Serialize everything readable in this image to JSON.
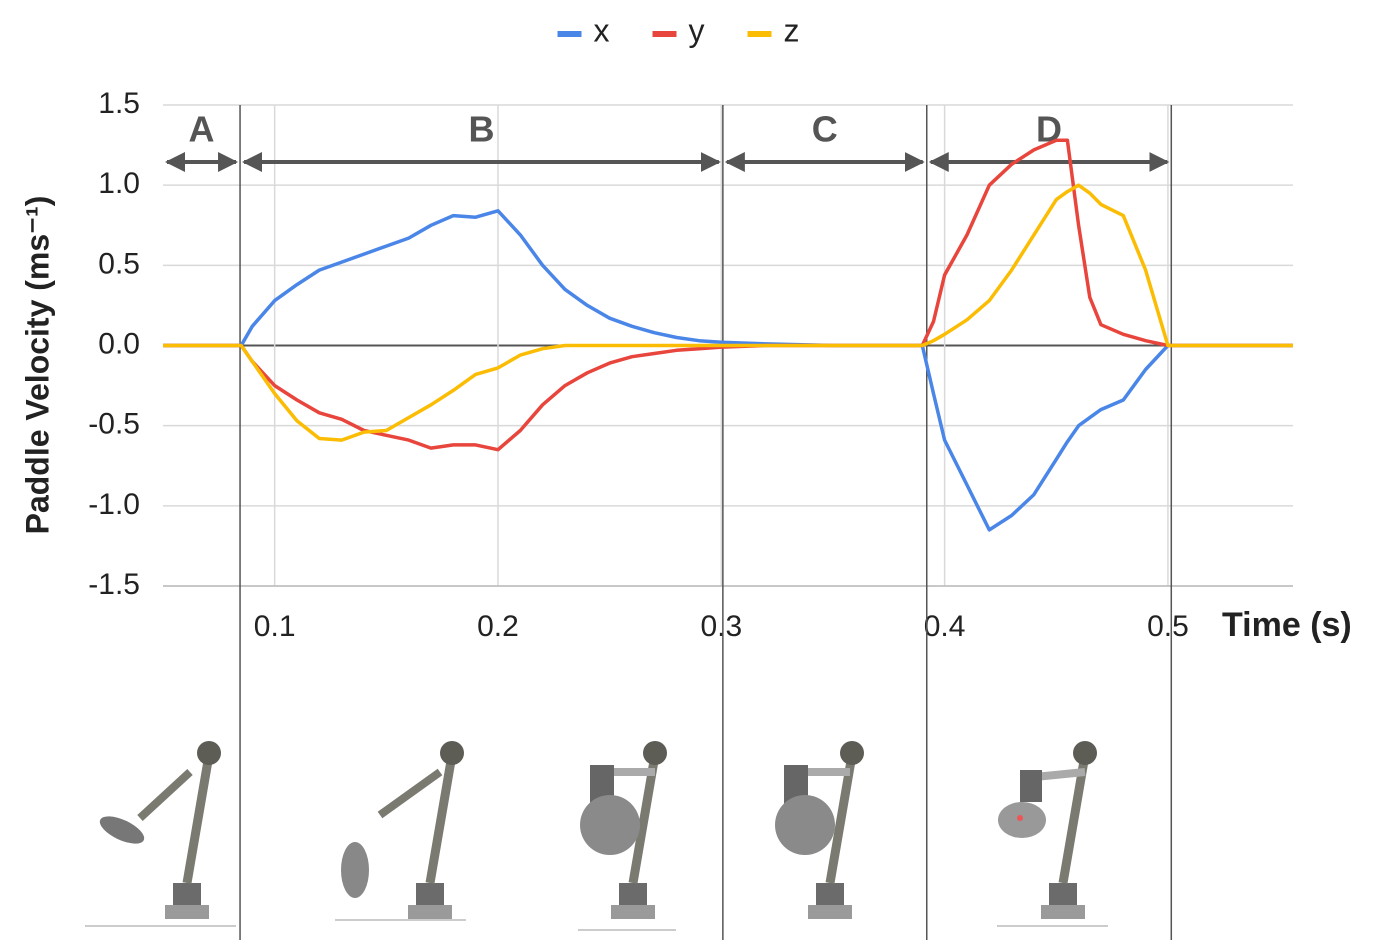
{
  "chart_data": {
    "type": "line",
    "y_label": "Paddle Velocity (ms⁻¹)",
    "x_label": "Time (s)",
    "x": [
      0.05,
      0.08,
      0.085,
      0.09,
      0.1,
      0.11,
      0.12,
      0.13,
      0.14,
      0.15,
      0.16,
      0.17,
      0.18,
      0.19,
      0.2,
      0.21,
      0.22,
      0.23,
      0.24,
      0.25,
      0.26,
      0.27,
      0.28,
      0.29,
      0.3,
      0.32,
      0.35,
      0.39,
      0.395,
      0.4,
      0.41,
      0.42,
      0.43,
      0.44,
      0.45,
      0.455,
      0.46,
      0.465,
      0.47,
      0.48,
      0.49,
      0.5,
      0.556
    ],
    "series": [
      {
        "name": "x",
        "color": "#4a86e8",
        "values": [
          0,
          0,
          0,
          0.12,
          0.28,
          0.38,
          0.47,
          0.52,
          0.57,
          0.62,
          0.67,
          0.75,
          0.81,
          0.8,
          0.84,
          0.69,
          0.5,
          0.35,
          0.25,
          0.17,
          0.12,
          0.08,
          0.05,
          0.03,
          0.02,
          0.01,
          0,
          0,
          -0.3,
          -0.59,
          -0.87,
          -1.15,
          -1.06,
          -0.93,
          -0.71,
          -0.6,
          -0.5,
          -0.45,
          -0.4,
          -0.34,
          -0.15,
          0,
          0
        ]
      },
      {
        "name": "y",
        "color": "#e8453c",
        "values": [
          0,
          0,
          0,
          -0.1,
          -0.25,
          -0.34,
          -0.42,
          -0.46,
          -0.53,
          -0.56,
          -0.59,
          -0.64,
          -0.62,
          -0.62,
          -0.65,
          -0.53,
          -0.37,
          -0.25,
          -0.17,
          -0.11,
          -0.07,
          -0.05,
          -0.03,
          -0.02,
          -0.01,
          0,
          0,
          0,
          0.15,
          0.44,
          0.69,
          1.0,
          1.13,
          1.22,
          1.28,
          1.28,
          0.75,
          0.3,
          0.13,
          0.07,
          0.03,
          0,
          0
        ]
      },
      {
        "name": "z",
        "color": "#fbbc04",
        "values": [
          0,
          0,
          0,
          -0.1,
          -0.3,
          -0.47,
          -0.58,
          -0.59,
          -0.54,
          -0.53,
          -0.45,
          -0.37,
          -0.28,
          -0.18,
          -0.14,
          -0.06,
          -0.02,
          0,
          0,
          0,
          0,
          0,
          0,
          0,
          0,
          0,
          0,
          0,
          0.03,
          0.07,
          0.16,
          0.28,
          0.47,
          0.69,
          0.91,
          0.96,
          1.0,
          0.95,
          0.88,
          0.81,
          0.47,
          0,
          0
        ]
      }
    ],
    "xlim": [
      0.05,
      0.556
    ],
    "xticks": [
      0.1,
      0.2,
      0.3,
      0.4,
      0.5
    ],
    "ylim": [
      -1.5,
      1.5
    ],
    "yticks": [
      -1.5,
      {
        "value": -1.0,
        "label": "-1.0"
      },
      -0.5,
      {
        "value": 0,
        "label": "0.0"
      },
      0.5,
      {
        "value": 1.0,
        "label": "1.0"
      },
      1.5
    ],
    "grid": true,
    "legend": "top",
    "phases": [
      {
        "label": "A",
        "start": 0.05,
        "end": 0.0845
      },
      {
        "label": "B",
        "start": 0.0845,
        "end": 0.3007
      },
      {
        "label": "C",
        "start": 0.3007,
        "end": 0.392
      },
      {
        "label": "D",
        "start": 0.392,
        "end": 0.5015
      }
    ]
  }
}
